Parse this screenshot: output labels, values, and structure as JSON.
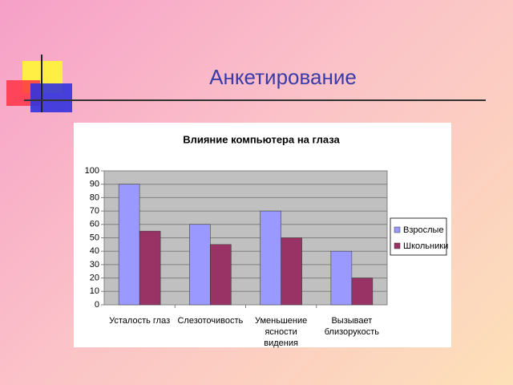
{
  "title": "Анкетирование",
  "chart_data": {
    "type": "bar",
    "title": "Влияние компьютера на глаза",
    "categories": [
      "Усталость глаз",
      "Слезоточивость",
      "Уменьшение ясности видения",
      "Вызывает близорукость"
    ],
    "series": [
      {
        "name": "Взрослые",
        "color": "#9999ff",
        "values": [
          90,
          60,
          70,
          40
        ]
      },
      {
        "name": "Школьники",
        "color": "#993366",
        "values": [
          55,
          45,
          50,
          20
        ]
      }
    ],
    "ylim": [
      0,
      100
    ],
    "yticks": [
      0,
      10,
      20,
      30,
      40,
      50,
      60,
      70,
      80,
      90,
      100
    ],
    "grid": true,
    "legend": "right"
  }
}
